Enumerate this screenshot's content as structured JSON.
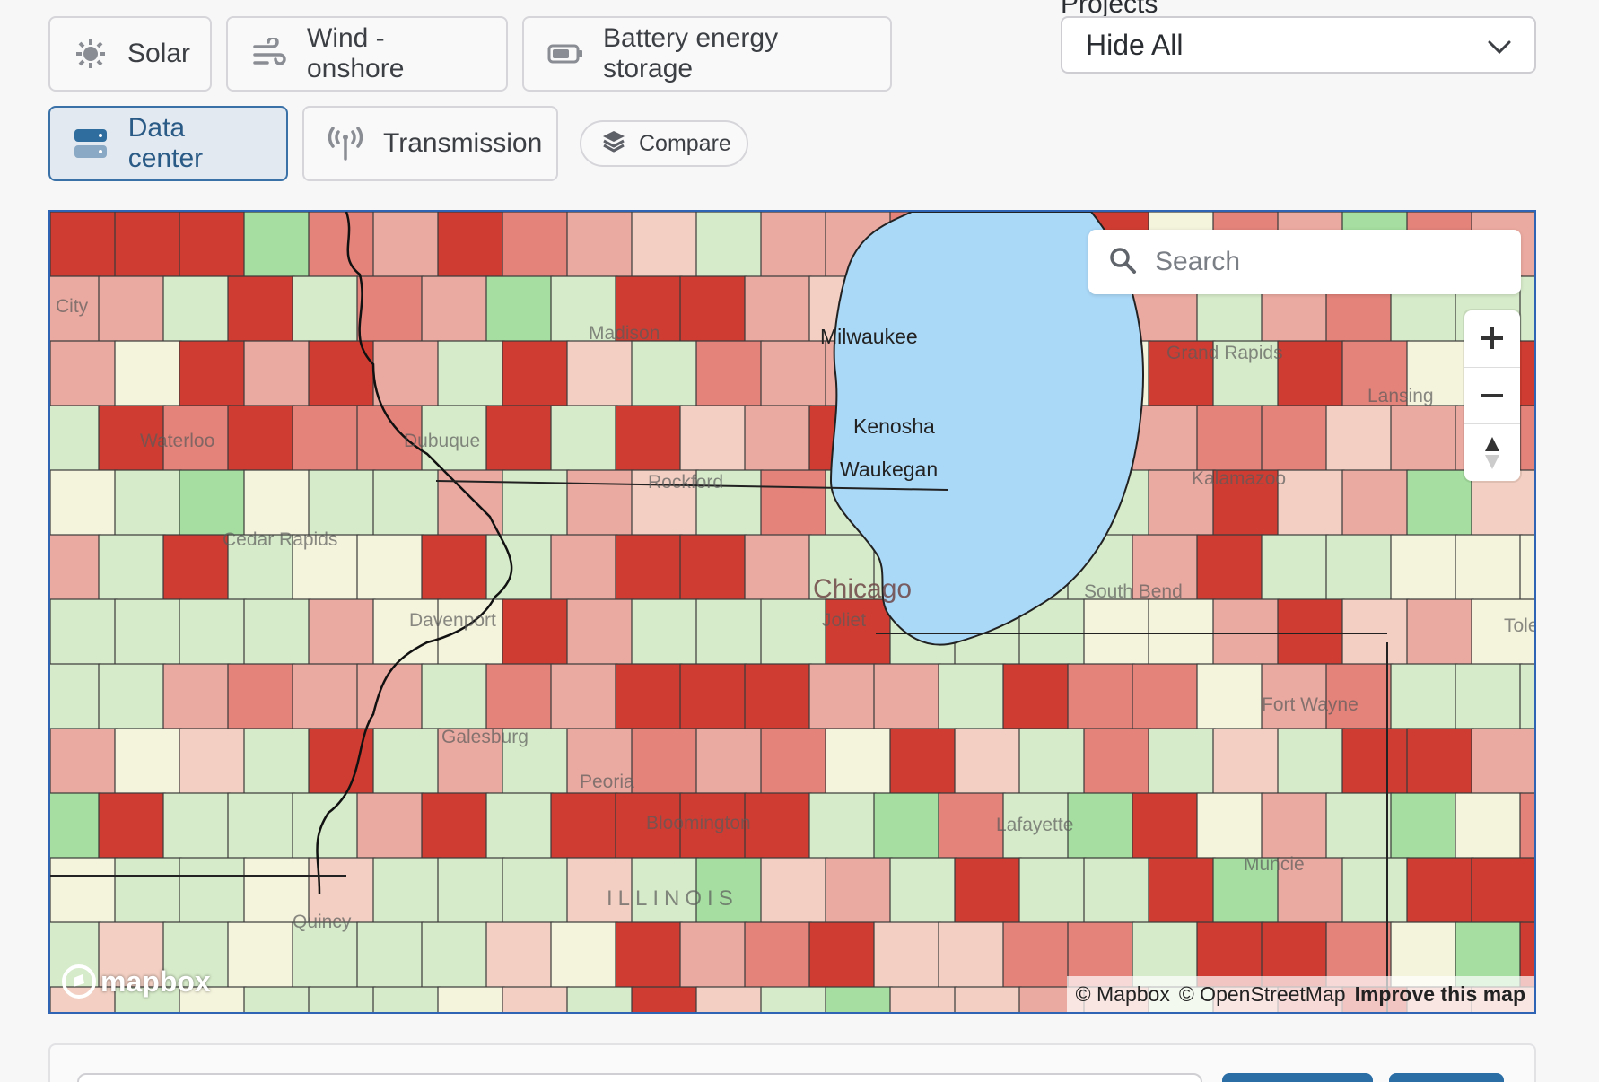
{
  "toolbar": {
    "solar_label": "Solar",
    "wind_label": "Wind - onshore",
    "battery_label": "Battery energy storage",
    "datacenter_label": "Data center",
    "transmission_label": "Transmission",
    "compare_label": "Compare",
    "active": "Data center"
  },
  "projects": {
    "label": "Projects",
    "selected": "Hide All"
  },
  "map": {
    "search_placeholder": "Search",
    "labels": {
      "chicago": "Chicago",
      "milwaukee": "Milwaukee",
      "kenosha": "Kenosha",
      "waukegan": "Waukegan",
      "madison": "Madison",
      "rockford": "Rockford",
      "dubuque": "Dubuque",
      "waterloo": "Waterloo",
      "cedar_rapids": "Cedar Rapids",
      "davenport": "Davenport",
      "galesburg": "Galesburg",
      "peoria": "Peoria",
      "bloomington": "Bloomington",
      "joliet": "Joliet",
      "illinois": "ILLINOIS",
      "quincy": "Quincy",
      "grand_rapids": "Grand Rapids",
      "lansing": "Lansing",
      "kalamazoo": "Kalamazoo",
      "south_bend": "South Bend",
      "fort_wayne": "Fort Wayne",
      "lafayette": "Lafayette",
      "muncie": "Muncie",
      "toledo": "Tole",
      "city": "City"
    },
    "attribution": {
      "mapbox": "© Mapbox",
      "osm": "© OpenStreetMap",
      "improve": "Improve this map"
    },
    "logo_text": "mapbox",
    "colors": {
      "dark_red": "#cf3d32",
      "red": "#e3837a",
      "salmon": "#ebaaa1",
      "pale": "#f2cfc2",
      "cream": "#f4f3dc",
      "light_green": "#d6ebc9",
      "green": "#a5dea0",
      "water": "#aad8f7"
    }
  }
}
